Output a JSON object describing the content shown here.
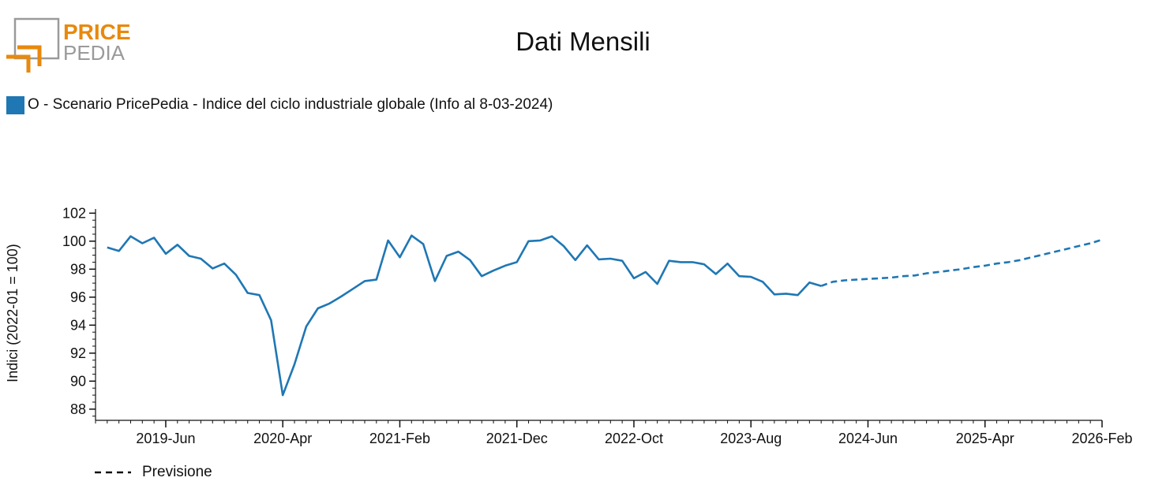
{
  "logo": {
    "line1": "PRICE",
    "line2": "PEDIA"
  },
  "colors": {
    "series": "#1f77b4",
    "logo_orange": "#e8890c",
    "logo_gray": "#9a9a9a"
  },
  "chart_data": {
    "type": "line",
    "title": "Dati Mensili",
    "ylabel": "Indici (2022-01 = 100)",
    "xlabel": "",
    "ylim": [
      87.2,
      102.3
    ],
    "yticks": [
      88,
      90,
      92,
      94,
      96,
      98,
      100,
      102
    ],
    "xrange": [
      "2018-12",
      "2026-02"
    ],
    "xticks": [
      "2019-Jun",
      "2020-Apr",
      "2021-Feb",
      "2021-Dec",
      "2022-Oct",
      "2023-Aug",
      "2024-Jun",
      "2025-Apr",
      "2026-Feb"
    ],
    "legend": {
      "label": "O - Scenario PricePedia - Indice del ciclo industriale globale (Info al 8-03-2024)",
      "placement": "top-left"
    },
    "forecast_label": "Previsione",
    "series": [
      {
        "name": "O - Scenario PricePedia - Indice del ciclo industriale globale (Info al 8-03-2024)",
        "x": [
          "2019-01",
          "2019-02",
          "2019-03",
          "2019-04",
          "2019-05",
          "2019-06",
          "2019-07",
          "2019-08",
          "2019-09",
          "2019-10",
          "2019-11",
          "2019-12",
          "2020-01",
          "2020-02",
          "2020-03",
          "2020-04",
          "2020-05",
          "2020-06",
          "2020-07",
          "2020-08",
          "2020-09",
          "2020-10",
          "2020-11",
          "2020-12",
          "2021-01",
          "2021-02",
          "2021-03",
          "2021-04",
          "2021-05",
          "2021-06",
          "2021-07",
          "2021-08",
          "2021-09",
          "2021-10",
          "2021-11",
          "2021-12",
          "2022-01",
          "2022-02",
          "2022-03",
          "2022-04",
          "2022-05",
          "2022-06",
          "2022-07",
          "2022-08",
          "2022-09",
          "2022-10",
          "2022-11",
          "2022-12",
          "2023-01",
          "2023-02",
          "2023-03",
          "2023-04",
          "2023-05",
          "2023-06",
          "2023-07",
          "2023-08",
          "2023-09",
          "2023-10",
          "2023-11",
          "2023-12",
          "2024-01",
          "2024-02"
        ],
        "values": [
          99.55,
          99.3,
          100.35,
          99.85,
          100.25,
          99.1,
          99.75,
          98.95,
          98.75,
          98.05,
          98.4,
          97.6,
          96.3,
          96.15,
          94.35,
          89.0,
          91.2,
          93.9,
          95.2,
          95.55,
          96.05,
          96.6,
          97.15,
          97.25,
          100.05,
          98.85,
          100.4,
          99.8,
          97.15,
          98.95,
          99.25,
          98.65,
          97.5,
          97.9,
          98.25,
          98.5,
          100.0,
          100.05,
          100.35,
          99.65,
          98.65,
          99.7,
          98.7,
          98.75,
          98.6,
          97.35,
          97.8,
          96.95,
          98.6,
          98.5,
          98.5,
          98.35,
          97.65,
          98.4,
          97.5,
          97.45,
          97.1,
          96.2,
          96.25,
          96.15,
          97.05,
          96.8
        ]
      },
      {
        "name": "Previsione",
        "style": "dashed",
        "x": [
          "2024-02",
          "2024-03",
          "2024-04",
          "2024-05",
          "2024-06",
          "2024-07",
          "2024-08",
          "2024-09",
          "2024-10",
          "2024-11",
          "2024-12",
          "2025-01",
          "2025-02",
          "2025-03",
          "2025-04",
          "2025-05",
          "2025-06",
          "2025-07",
          "2025-08",
          "2025-09",
          "2025-10",
          "2025-11",
          "2025-12",
          "2026-01",
          "2026-02"
        ],
        "values": [
          96.8,
          97.1,
          97.2,
          97.25,
          97.3,
          97.35,
          97.4,
          97.5,
          97.55,
          97.7,
          97.8,
          97.9,
          98.0,
          98.15,
          98.25,
          98.4,
          98.5,
          98.65,
          98.85,
          99.05,
          99.25,
          99.45,
          99.65,
          99.85,
          100.1
        ]
      }
    ]
  }
}
